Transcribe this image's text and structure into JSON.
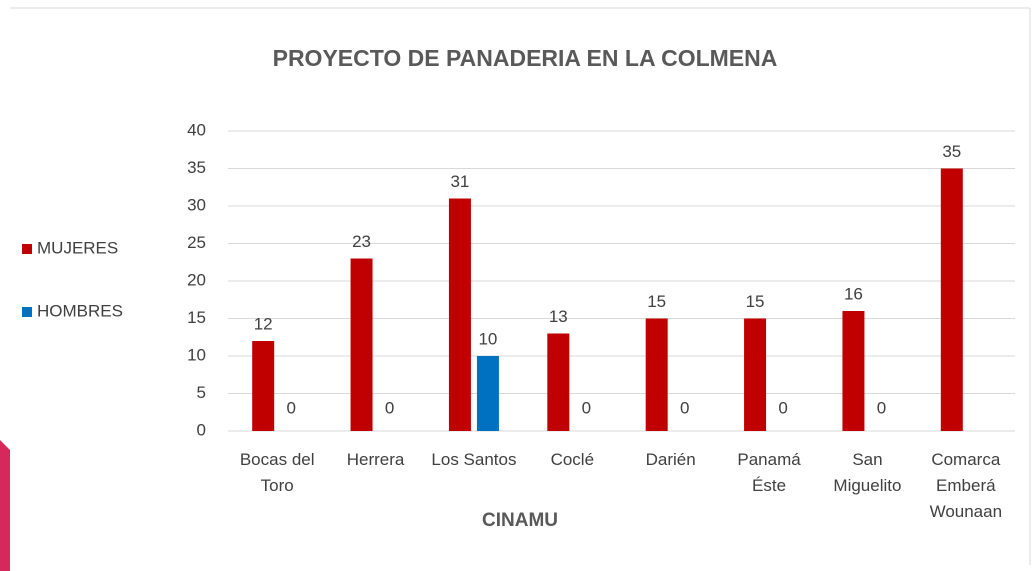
{
  "chart_data": {
    "type": "bar",
    "title": "PROYECTO DE PANADERIA EN LA COLMENA",
    "x_label": "CINAMU",
    "categories": [
      "Bocas del Toro",
      "Herrera",
      "Los Santos",
      "Coclé",
      "Darién",
      "Panamá Éste",
      "San Miguelito",
      "Comarca Emberá Wounaan"
    ],
    "series": [
      {
        "name": "MUJERES",
        "color": "#c00000",
        "values": [
          12,
          23,
          31,
          13,
          15,
          15,
          16,
          35
        ]
      },
      {
        "name": "HOMBRES",
        "color": "#0070c0",
        "values": [
          0,
          0,
          10,
          0,
          0,
          0,
          0,
          null
        ]
      }
    ],
    "ylim": [
      0,
      40
    ],
    "yticks": [
      0,
      5,
      10,
      15,
      20,
      25,
      30,
      35,
      40
    ],
    "grid": true,
    "legend": "left"
  }
}
